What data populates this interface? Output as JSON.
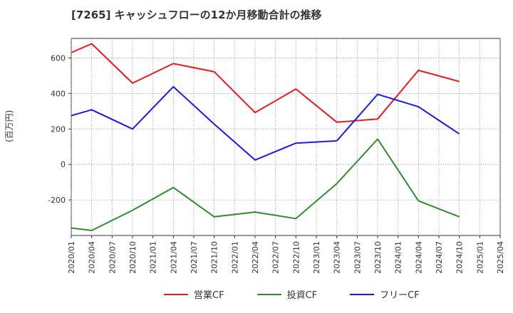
{
  "chart_data": {
    "type": "line",
    "title": "[7265]  キャッシュフローの12か月移動合計の推移",
    "ylabel": "(百万円)",
    "xlabel": "",
    "ylim": [
      -400,
      710
    ],
    "yticks": [
      -200,
      0,
      200,
      400,
      600
    ],
    "yticklabels": [
      "-200",
      "0",
      "200",
      "400",
      "600"
    ],
    "xticklabels": [
      "2020/01",
      "2020/04",
      "2020/07",
      "2020/10",
      "2021/01",
      "2021/04",
      "2021/07",
      "2021/10",
      "2022/01",
      "2022/04",
      "2022/07",
      "2022/10",
      "2023/01",
      "2023/04",
      "2023/07",
      "2023/10",
      "2024/01",
      "2024/04",
      "2024/07",
      "2024/10",
      "2025/01",
      "2025/04"
    ],
    "grid": true,
    "legend_position": "bottom",
    "x": [
      "2020/01",
      "2020/04",
      "2020/10",
      "2021/04",
      "2021/10",
      "2022/04",
      "2022/10",
      "2023/04",
      "2023/10",
      "2024/04",
      "2024/10"
    ],
    "series": [
      {
        "name": "営業CF",
        "color": "#e41a1c",
        "values": [
          630,
          680,
          458,
          568,
          522,
          292,
          425,
          238,
          256,
          530,
          467
        ]
      },
      {
        "name": "投資CF",
        "color": "#2e8b2e",
        "values": [
          -358,
          -372,
          -258,
          -130,
          -295,
          -268,
          -305,
          -108,
          143,
          -205,
          -295
        ]
      },
      {
        "name": "フリーCF",
        "color": "#1a1adf",
        "values": [
          275,
          308,
          200,
          438,
          227,
          25,
          120,
          133,
          395,
          325,
          172
        ]
      }
    ]
  }
}
